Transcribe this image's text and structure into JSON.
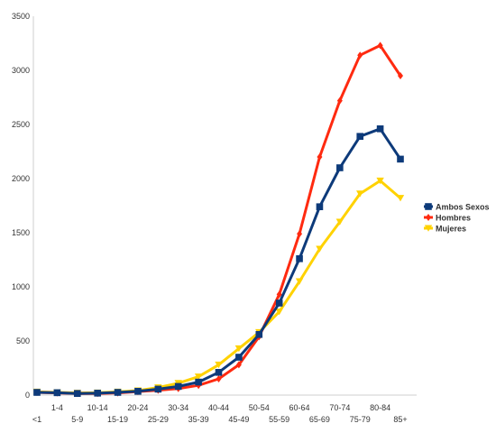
{
  "chart_data": {
    "type": "line",
    "title": "",
    "xlabel": "",
    "ylabel": "",
    "ylim": [
      0,
      3500
    ],
    "yticks": [
      0,
      500,
      1000,
      1500,
      2000,
      2500,
      3000,
      3500
    ],
    "grid": false,
    "legend_position": "right",
    "categories": [
      "<1",
      "1-4",
      "5-9",
      "10-14",
      "15-19",
      "20-24",
      "25-29",
      "30-34",
      "35-39",
      "40-44",
      "45-49",
      "50-54",
      "55-59",
      "60-64",
      "65-69",
      "70-74",
      "75-79",
      "80-84",
      "85+"
    ],
    "series": [
      {
        "name": "Ambos Sexos",
        "color": "#0d3a7a",
        "marker": "square",
        "values": [
          25,
          22,
          15,
          18,
          25,
          35,
          55,
          80,
          120,
          210,
          350,
          560,
          850,
          1260,
          1740,
          2100,
          2390,
          2460,
          2180
        ]
      },
      {
        "name": "Hombres",
        "color": "#ff2a10",
        "marker": "diamond",
        "values": [
          25,
          20,
          15,
          15,
          20,
          32,
          45,
          60,
          90,
          150,
          280,
          540,
          930,
          1490,
          2200,
          2720,
          3140,
          3230,
          2950
        ]
      },
      {
        "name": "Mujeres",
        "color": "#ffd200",
        "marker": "triangle-down",
        "values": [
          30,
          25,
          20,
          22,
          30,
          42,
          70,
          110,
          170,
          280,
          430,
          580,
          770,
          1050,
          1350,
          1600,
          1860,
          1980,
          1820
        ]
      }
    ]
  }
}
